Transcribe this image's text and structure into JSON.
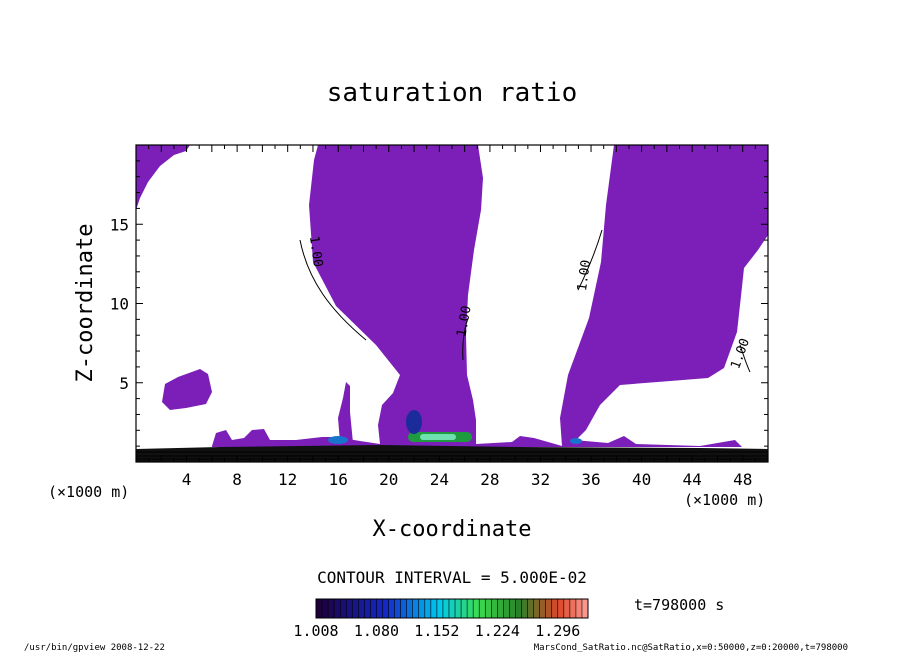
{
  "chart_data": {
    "type": "contour",
    "title": "saturation ratio",
    "xlabel": "X-coordinate",
    "ylabel": "Z-coordinate",
    "x_unit": "(×1000 m)",
    "x_unit_right": "(×1000 m)",
    "xlim": [
      0,
      50
    ],
    "ylim": [
      0,
      20
    ],
    "x_ticks": [
      4,
      8,
      12,
      16,
      20,
      24,
      28,
      32,
      36,
      40,
      44,
      48
    ],
    "y_ticks": [
      5,
      10,
      15
    ],
    "contour_interval_text": "CONTOUR INTERVAL = 5.000E-02",
    "contour_labels": [
      "1.00",
      "1.00",
      "1.00",
      "1.00"
    ],
    "colorbar": {
      "ticks": [
        "1.008",
        "1.080",
        "1.152",
        "1.224",
        "1.296"
      ],
      "range": [
        1.008,
        1.332
      ],
      "steps": 45
    },
    "time_label": "t=798000 s",
    "fill_color": "#7b1fb8",
    "footer_left": "/usr/bin/gpview   2008-12-22",
    "footer_right": "MarsCond_SatRatio.nc@SatRatio,x=0:50000,z=0:20000,t=798000"
  }
}
